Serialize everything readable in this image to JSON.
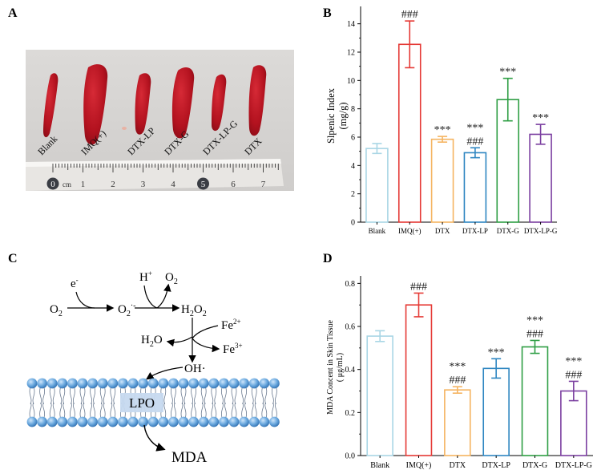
{
  "panels": {
    "A": "A",
    "B": "B",
    "C": "C",
    "D": "D"
  },
  "photo": {
    "spleen_labels": [
      "Blank",
      "IMQ(+)",
      "DTX-LP",
      "DTX-G",
      "DTX-LP-G",
      "DTX"
    ],
    "ruler": {
      "unit": "cm",
      "ticks": [
        "0",
        "1",
        "2",
        "3",
        "4",
        "5",
        "6",
        "7"
      ]
    },
    "colors": {
      "spleen": "#b3121f",
      "background": "#d9d7d5"
    }
  },
  "scheme": {
    "e": "e",
    "e_sup": "-",
    "o2_left": "O",
    "o2_left_sub": "2",
    "superoxide": "O",
    "superoxide_sub": "2",
    "superoxide_sup": "·-",
    "h_plus": "H",
    "h_plus_sup": "+",
    "o2_top": "O",
    "o2_top_sub": "2",
    "h2o2": "H",
    "h2o2_sub1": "2",
    "h2o2_o": "O",
    "h2o2_sub2": "2",
    "fe2": "Fe",
    "fe2_sup": "2+",
    "fe3": "Fe",
    "fe3_sup": "3+",
    "h2o": "H",
    "h2o_sub": "2",
    "h2o_o": "O",
    "oh": "OH·",
    "lpo": "LPO",
    "mda": "MDA",
    "colors": {
      "bead": "#4a90d0",
      "bead_highlight": "#cfe6fb",
      "lpo_box": "#c6d9ef"
    }
  },
  "chart_data": [
    {
      "type": "bar",
      "panel": "B",
      "categories": [
        "Blank",
        "IMQ(+)",
        "DTX",
        "DTX-LP",
        "DTX-G",
        "DTX-LP-G"
      ],
      "values": [
        5.2,
        12.55,
        5.85,
        4.9,
        8.65,
        6.2
      ],
      "errors": [
        0.35,
        1.65,
        0.2,
        0.35,
        1.5,
        0.7
      ],
      "annotations": [
        [],
        [
          "###"
        ],
        [
          "***"
        ],
        [
          "***",
          "###"
        ],
        [
          "***"
        ],
        [
          "***"
        ]
      ],
      "colors": [
        "#a9d6e5",
        "#e53935",
        "#f5b461",
        "#2e86c1",
        "#2e9e44",
        "#7b3fa0"
      ],
      "ylabel": "Slpenic Index",
      "ylabel_unit": "(mg/g)",
      "yticks": [
        "0",
        "2",
        "4",
        "6",
        "8",
        "10",
        "12",
        "14"
      ],
      "ylim": [
        0,
        15
      ],
      "title": "",
      "xlabel": ""
    },
    {
      "type": "bar",
      "panel": "D",
      "categories": [
        "Blank",
        "IMQ(+)",
        "DTX",
        "DTX-LP",
        "DTX-G",
        "DTX-LP-G"
      ],
      "values": [
        0.555,
        0.7,
        0.305,
        0.405,
        0.505,
        0.3
      ],
      "errors": [
        0.025,
        0.055,
        0.015,
        0.045,
        0.03,
        0.045
      ],
      "annotations": [
        [],
        [
          "###"
        ],
        [
          "***",
          "###"
        ],
        [
          "***"
        ],
        [
          "***",
          "###"
        ],
        [
          "***",
          "###"
        ]
      ],
      "colors": [
        "#a9d6e5",
        "#e53935",
        "#f5b461",
        "#2e86c1",
        "#2e9e44",
        "#7b3fa0"
      ],
      "ylabel": "MDA Concent in Skin Tissue",
      "ylabel_unit": "( μg/mL)",
      "yticks": [
        "0.0",
        "0.2",
        "0.4",
        "0.6",
        "0.8"
      ],
      "ylim": [
        0,
        0.82
      ],
      "title": "",
      "xlabel": ""
    }
  ]
}
